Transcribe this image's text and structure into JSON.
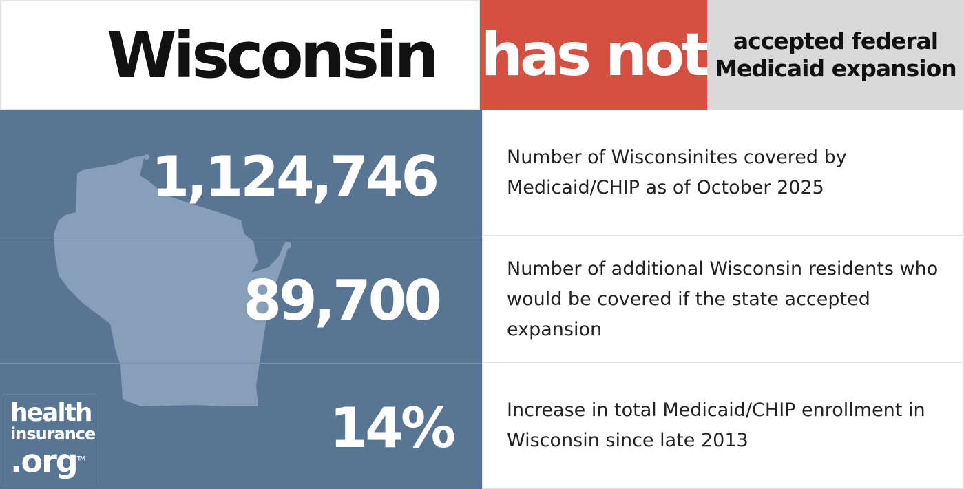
{
  "header": {
    "state": "Wisconsin",
    "status": "has not",
    "status_rest_line1": "accepted federal",
    "status_rest_line2": "Medicaid expansion"
  },
  "colors": {
    "panel": "#587594",
    "map": "#879fb9",
    "status": "#d55040",
    "gray": "#d9d9d9"
  },
  "stats": [
    {
      "value": "1,124,746",
      "line1": "Number of Wisconsinites covered by",
      "line2": "Medicaid/CHIP as of October 2025"
    },
    {
      "value": "89,700",
      "line1": "Number of additional Wisconsin residents who",
      "line2": "would be covered if the state accepted expansion"
    },
    {
      "value": "14%",
      "line1": "Increase in total Medicaid/CHIP enrollment in",
      "line2": "Wisconsin since late 2013"
    }
  ],
  "logo": {
    "line1": "health",
    "line2": "insurance",
    "line3": ".org",
    "tm": "TM"
  }
}
